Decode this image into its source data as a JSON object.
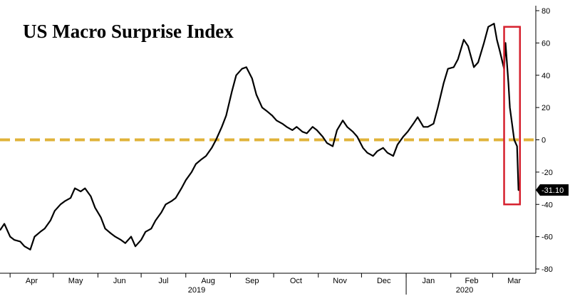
{
  "chart_data": {
    "type": "line",
    "title": "US Macro Surprise Index",
    "xlabel": "",
    "ylabel": "",
    "ylim": [
      -80,
      80
    ],
    "y_ticks": [
      80,
      60,
      40,
      20,
      0,
      -20,
      -40,
      -60,
      -80
    ],
    "y_axis_side": "right",
    "months": [
      "Apr",
      "May",
      "Jun",
      "Jul",
      "Aug",
      "Sep",
      "Oct",
      "Nov",
      "Dec",
      "Jan",
      "Feb",
      "Mar"
    ],
    "years": [
      "2019",
      "2020"
    ],
    "zero_line": {
      "value": 0,
      "color": "#E0B33A",
      "style": "dashed"
    },
    "highlight_box": {
      "color": "#D6202E",
      "from": "2020-03-09",
      "to": "2020-03-20",
      "ymin": -40,
      "ymax": 70
    },
    "last_value": {
      "value": -31.1,
      "label": "-31.10"
    },
    "series": [
      {
        "color": "#000000",
        "x": [
          "2019-03-25",
          "2019-03-28",
          "2019-04-01",
          "2019-04-04",
          "2019-04-08",
          "2019-04-11",
          "2019-04-15",
          "2019-04-18",
          "2019-04-22",
          "2019-04-25",
          "2019-04-29",
          "2019-05-02",
          "2019-05-06",
          "2019-05-09",
          "2019-05-13",
          "2019-05-16",
          "2019-05-20",
          "2019-05-23",
          "2019-05-27",
          "2019-05-30",
          "2019-06-03",
          "2019-06-06",
          "2019-06-10",
          "2019-06-13",
          "2019-06-17",
          "2019-06-20",
          "2019-06-24",
          "2019-06-27",
          "2019-07-01",
          "2019-07-04",
          "2019-07-08",
          "2019-07-11",
          "2019-07-15",
          "2019-07-18",
          "2019-07-22",
          "2019-07-25",
          "2019-07-29",
          "2019-08-01",
          "2019-08-05",
          "2019-08-08",
          "2019-08-12",
          "2019-08-15",
          "2019-08-19",
          "2019-08-22",
          "2019-08-26",
          "2019-08-29",
          "2019-09-02",
          "2019-09-05",
          "2019-09-09",
          "2019-09-12",
          "2019-09-16",
          "2019-09-19",
          "2019-09-23",
          "2019-09-26",
          "2019-09-30",
          "2019-10-03",
          "2019-10-07",
          "2019-10-10",
          "2019-10-14",
          "2019-10-17",
          "2019-10-21",
          "2019-10-24",
          "2019-10-28",
          "2019-10-31",
          "2019-11-04",
          "2019-11-07",
          "2019-11-11",
          "2019-11-14",
          "2019-11-18",
          "2019-11-21",
          "2019-11-25",
          "2019-11-28",
          "2019-12-02",
          "2019-12-05",
          "2019-12-09",
          "2019-12-12",
          "2019-12-16",
          "2019-12-19",
          "2019-12-23",
          "2019-12-26",
          "2019-12-30",
          "2020-01-02",
          "2020-01-06",
          "2020-01-09",
          "2020-01-13",
          "2020-01-16",
          "2020-01-20",
          "2020-01-23",
          "2020-01-27",
          "2020-01-30",
          "2020-02-03",
          "2020-02-06",
          "2020-02-10",
          "2020-02-13",
          "2020-02-17",
          "2020-02-20",
          "2020-02-24",
          "2020-02-27",
          "2020-03-02",
          "2020-03-04",
          "2020-03-06",
          "2020-03-09",
          "2020-03-10",
          "2020-03-12",
          "2020-03-13",
          "2020-03-16",
          "2020-03-17",
          "2020-03-18",
          "2020-03-19",
          "2020-03-20"
        ],
        "y": [
          -56,
          -52,
          -60,
          -62,
          -63,
          -66,
          -68,
          -60,
          -57,
          -55,
          -50,
          -44,
          -40,
          -38,
          -36,
          -30,
          -32,
          -30,
          -35,
          -42,
          -48,
          -55,
          -58,
          -60,
          -62,
          -64,
          -60,
          -66,
          -62,
          -57,
          -55,
          -50,
          -45,
          -40,
          -38,
          -36,
          -30,
          -25,
          -20,
          -15,
          -12,
          -10,
          -5,
          0,
          8,
          15,
          30,
          40,
          44,
          45,
          38,
          28,
          20,
          18,
          15,
          12,
          10,
          8,
          6,
          8,
          5,
          4,
          8,
          6,
          2,
          -2,
          -4,
          6,
          12,
          8,
          5,
          2,
          -5,
          -8,
          -10,
          -7,
          -5,
          -8,
          -10,
          -3,
          2,
          5,
          10,
          14,
          8,
          8,
          10,
          20,
          35,
          44,
          45,
          50,
          62,
          58,
          45,
          48,
          60,
          70,
          72,
          62,
          55,
          44,
          60,
          35,
          20,
          0,
          -2,
          -4,
          -31.1,
          -31.1
        ]
      }
    ]
  }
}
